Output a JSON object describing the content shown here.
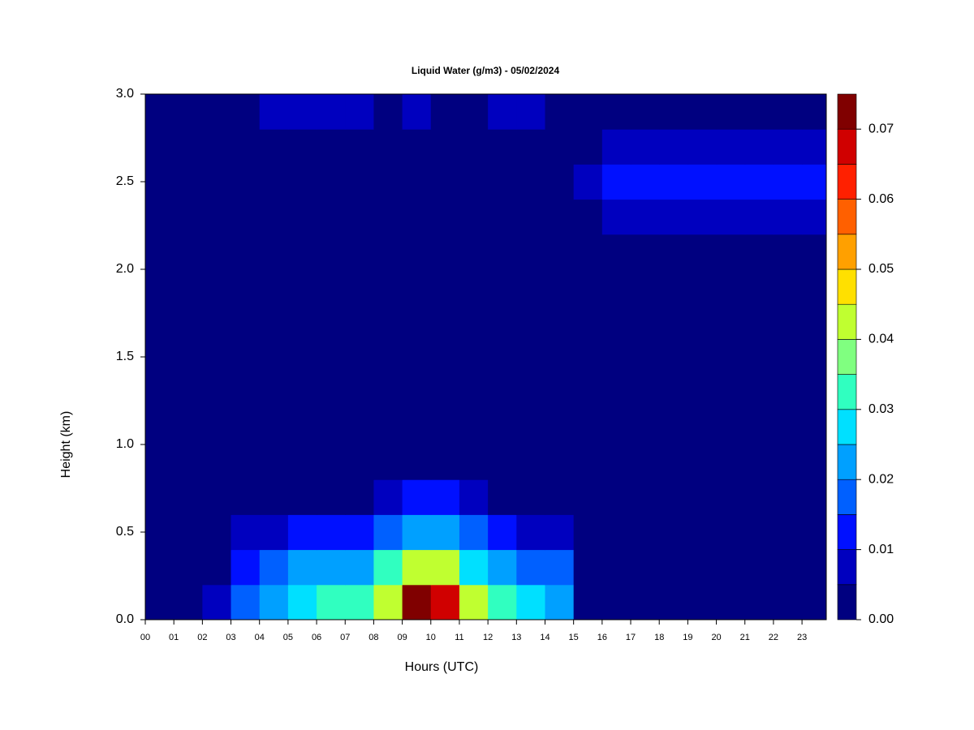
{
  "chart_data": {
    "type": "heatmap",
    "title": "Liquid Water (g/m3) - 05/02/2024",
    "x_label": "Hours (UTC)",
    "y_label": "Height (km)",
    "xlim": [
      0,
      23.85
    ],
    "ylim": [
      0,
      3
    ],
    "xticks": [
      {
        "value": 0,
        "label": "00"
      },
      {
        "value": 1,
        "label": "01"
      },
      {
        "value": 2,
        "label": "02"
      },
      {
        "value": 3,
        "label": "03"
      },
      {
        "value": 4,
        "label": "04"
      },
      {
        "value": 5,
        "label": "05"
      },
      {
        "value": 6,
        "label": "06"
      },
      {
        "value": 7,
        "label": "07"
      },
      {
        "value": 8,
        "label": "08"
      },
      {
        "value": 9,
        "label": "09"
      },
      {
        "value": 10,
        "label": "10"
      },
      {
        "value": 11,
        "label": "11"
      },
      {
        "value": 12,
        "label": "12"
      },
      {
        "value": 13,
        "label": "13"
      },
      {
        "value": 14,
        "label": "14"
      },
      {
        "value": 15,
        "label": "15"
      },
      {
        "value": 16,
        "label": "16"
      },
      {
        "value": 17,
        "label": "17"
      },
      {
        "value": 18,
        "label": "18"
      },
      {
        "value": 19,
        "label": "19"
      },
      {
        "value": 20,
        "label": "20"
      },
      {
        "value": 21,
        "label": "21"
      },
      {
        "value": 22,
        "label": "22"
      },
      {
        "value": 23,
        "label": "23"
      }
    ],
    "yticks": [
      {
        "value": 0,
        "label": "0.0"
      },
      {
        "value": 0.5,
        "label": "0.5"
      },
      {
        "value": 1,
        "label": "1.0"
      },
      {
        "value": 1.5,
        "label": "1.5"
      },
      {
        "value": 2,
        "label": "2.0"
      },
      {
        "value": 2.5,
        "label": "2.5"
      },
      {
        "value": 3,
        "label": "3.0"
      }
    ],
    "x": [
      0,
      1,
      2,
      3,
      4,
      5,
      6,
      7,
      8,
      9,
      10,
      11,
      12,
      13,
      14,
      15,
      16,
      17,
      18,
      19,
      20,
      21,
      22,
      23
    ],
    "y": [
      0,
      0.2,
      0.4,
      0.6,
      0.8,
      1.0,
      1.2,
      1.4,
      1.6,
      1.8,
      2.0,
      2.2,
      2.4,
      2.6,
      2.8
    ],
    "z": [
      [
        0,
        0,
        0.005,
        0.015,
        0.02,
        0.025,
        0.03,
        0.03,
        0.04,
        0.07,
        0.065,
        0.04,
        0.03,
        0.025,
        0.02,
        0,
        0,
        0,
        0,
        0,
        0,
        0,
        0,
        0
      ],
      [
        0,
        0,
        0.003,
        0.012,
        0.015,
        0.02,
        0.02,
        0.022,
        0.03,
        0.04,
        0.04,
        0.025,
        0.02,
        0.018,
        0.015,
        0,
        0,
        0,
        0,
        0,
        0,
        0,
        0,
        0
      ],
      [
        0,
        0,
        0,
        0.005,
        0.008,
        0.01,
        0.01,
        0.01,
        0.015,
        0.02,
        0.02,
        0.015,
        0.01,
        0.008,
        0.006,
        0,
        0,
        0,
        0,
        0,
        0,
        0,
        0,
        0
      ],
      [
        0,
        0,
        0,
        0,
        0,
        0,
        0,
        0,
        0.008,
        0.012,
        0.012,
        0.006,
        0,
        0,
        0,
        0,
        0,
        0,
        0,
        0,
        0,
        0,
        0,
        0
      ],
      [
        0,
        0,
        0,
        0,
        0,
        0,
        0,
        0,
        0,
        0,
        0,
        0,
        0,
        0,
        0,
        0,
        0,
        0,
        0,
        0,
        0,
        0,
        0,
        0
      ],
      [
        0,
        0,
        0,
        0,
        0,
        0,
        0,
        0,
        0,
        0,
        0,
        0,
        0,
        0,
        0,
        0,
        0,
        0,
        0,
        0,
        0,
        0,
        0,
        0
      ],
      [
        0,
        0,
        0,
        0,
        0,
        0,
        0,
        0,
        0,
        0,
        0,
        0,
        0,
        0,
        0,
        0,
        0,
        0,
        0,
        0,
        0,
        0,
        0,
        0
      ],
      [
        0,
        0,
        0,
        0,
        0,
        0,
        0,
        0,
        0,
        0,
        0,
        0,
        0,
        0,
        0,
        0,
        0,
        0,
        0,
        0,
        0,
        0,
        0,
        0
      ],
      [
        0,
        0,
        0,
        0,
        0,
        0,
        0,
        0,
        0,
        0,
        0,
        0,
        0,
        0,
        0,
        0,
        0,
        0,
        0,
        0,
        0,
        0,
        0,
        0
      ],
      [
        0,
        0,
        0,
        0,
        0,
        0,
        0,
        0,
        0,
        0,
        0,
        0,
        0,
        0,
        0,
        0,
        0,
        0,
        0,
        0,
        0,
        0,
        0,
        0
      ],
      [
        0,
        0,
        0,
        0,
        0,
        0,
        0,
        0,
        0,
        0,
        0,
        0,
        0,
        0,
        0,
        0,
        0,
        0,
        0,
        0,
        0,
        0,
        0,
        0
      ],
      [
        0,
        0,
        0,
        0,
        0,
        0,
        0,
        0,
        0,
        0,
        0,
        0,
        0,
        0,
        0,
        0,
        0.006,
        0.006,
        0.006,
        0.006,
        0.006,
        0.006,
        0.006,
        0.006
      ],
      [
        0,
        0,
        0,
        0,
        0,
        0,
        0,
        0,
        0,
        0,
        0,
        0,
        0,
        0,
        0,
        0.006,
        0.012,
        0.012,
        0.012,
        0.012,
        0.012,
        0.012,
        0.012,
        0.012
      ],
      [
        0,
        0,
        0,
        0,
        0,
        0,
        0,
        0,
        0,
        0,
        0,
        0,
        0,
        0,
        0,
        0,
        0.006,
        0.006,
        0.006,
        0.006,
        0.006,
        0.006,
        0.006,
        0.006
      ],
      [
        0,
        0,
        0,
        0,
        0.006,
        0.006,
        0.006,
        0.006,
        0,
        0.006,
        0,
        0,
        0.008,
        0.008,
        0,
        0,
        0,
        0,
        0,
        0,
        0,
        0,
        0,
        0
      ]
    ],
    "levels": [
      0,
      0.005,
      0.01,
      0.015,
      0.02,
      0.025,
      0.03,
      0.035,
      0.04,
      0.045,
      0.05,
      0.055,
      0.06,
      0.065,
      0.07,
      0.075
    ],
    "colors": [
      "#000080",
      "#0000bf",
      "#0010ff",
      "#0060ff",
      "#00a0ff",
      "#00e0ff",
      "#30ffc0",
      "#80ff80",
      "#c0ff30",
      "#ffe000",
      "#ffa000",
      "#ff6000",
      "#ff2000",
      "#d00000",
      "#800000"
    ],
    "colorbar_ticks": [
      {
        "value": 0,
        "label": "0.00"
      },
      {
        "value": 0.01,
        "label": "0.01"
      },
      {
        "value": 0.02,
        "label": "0.02"
      },
      {
        "value": 0.03,
        "label": "0.03"
      },
      {
        "value": 0.04,
        "label": "0.04"
      },
      {
        "value": 0.05,
        "label": "0.05"
      },
      {
        "value": 0.06,
        "label": "0.06"
      },
      {
        "value": 0.07,
        "label": "0.07"
      }
    ]
  }
}
